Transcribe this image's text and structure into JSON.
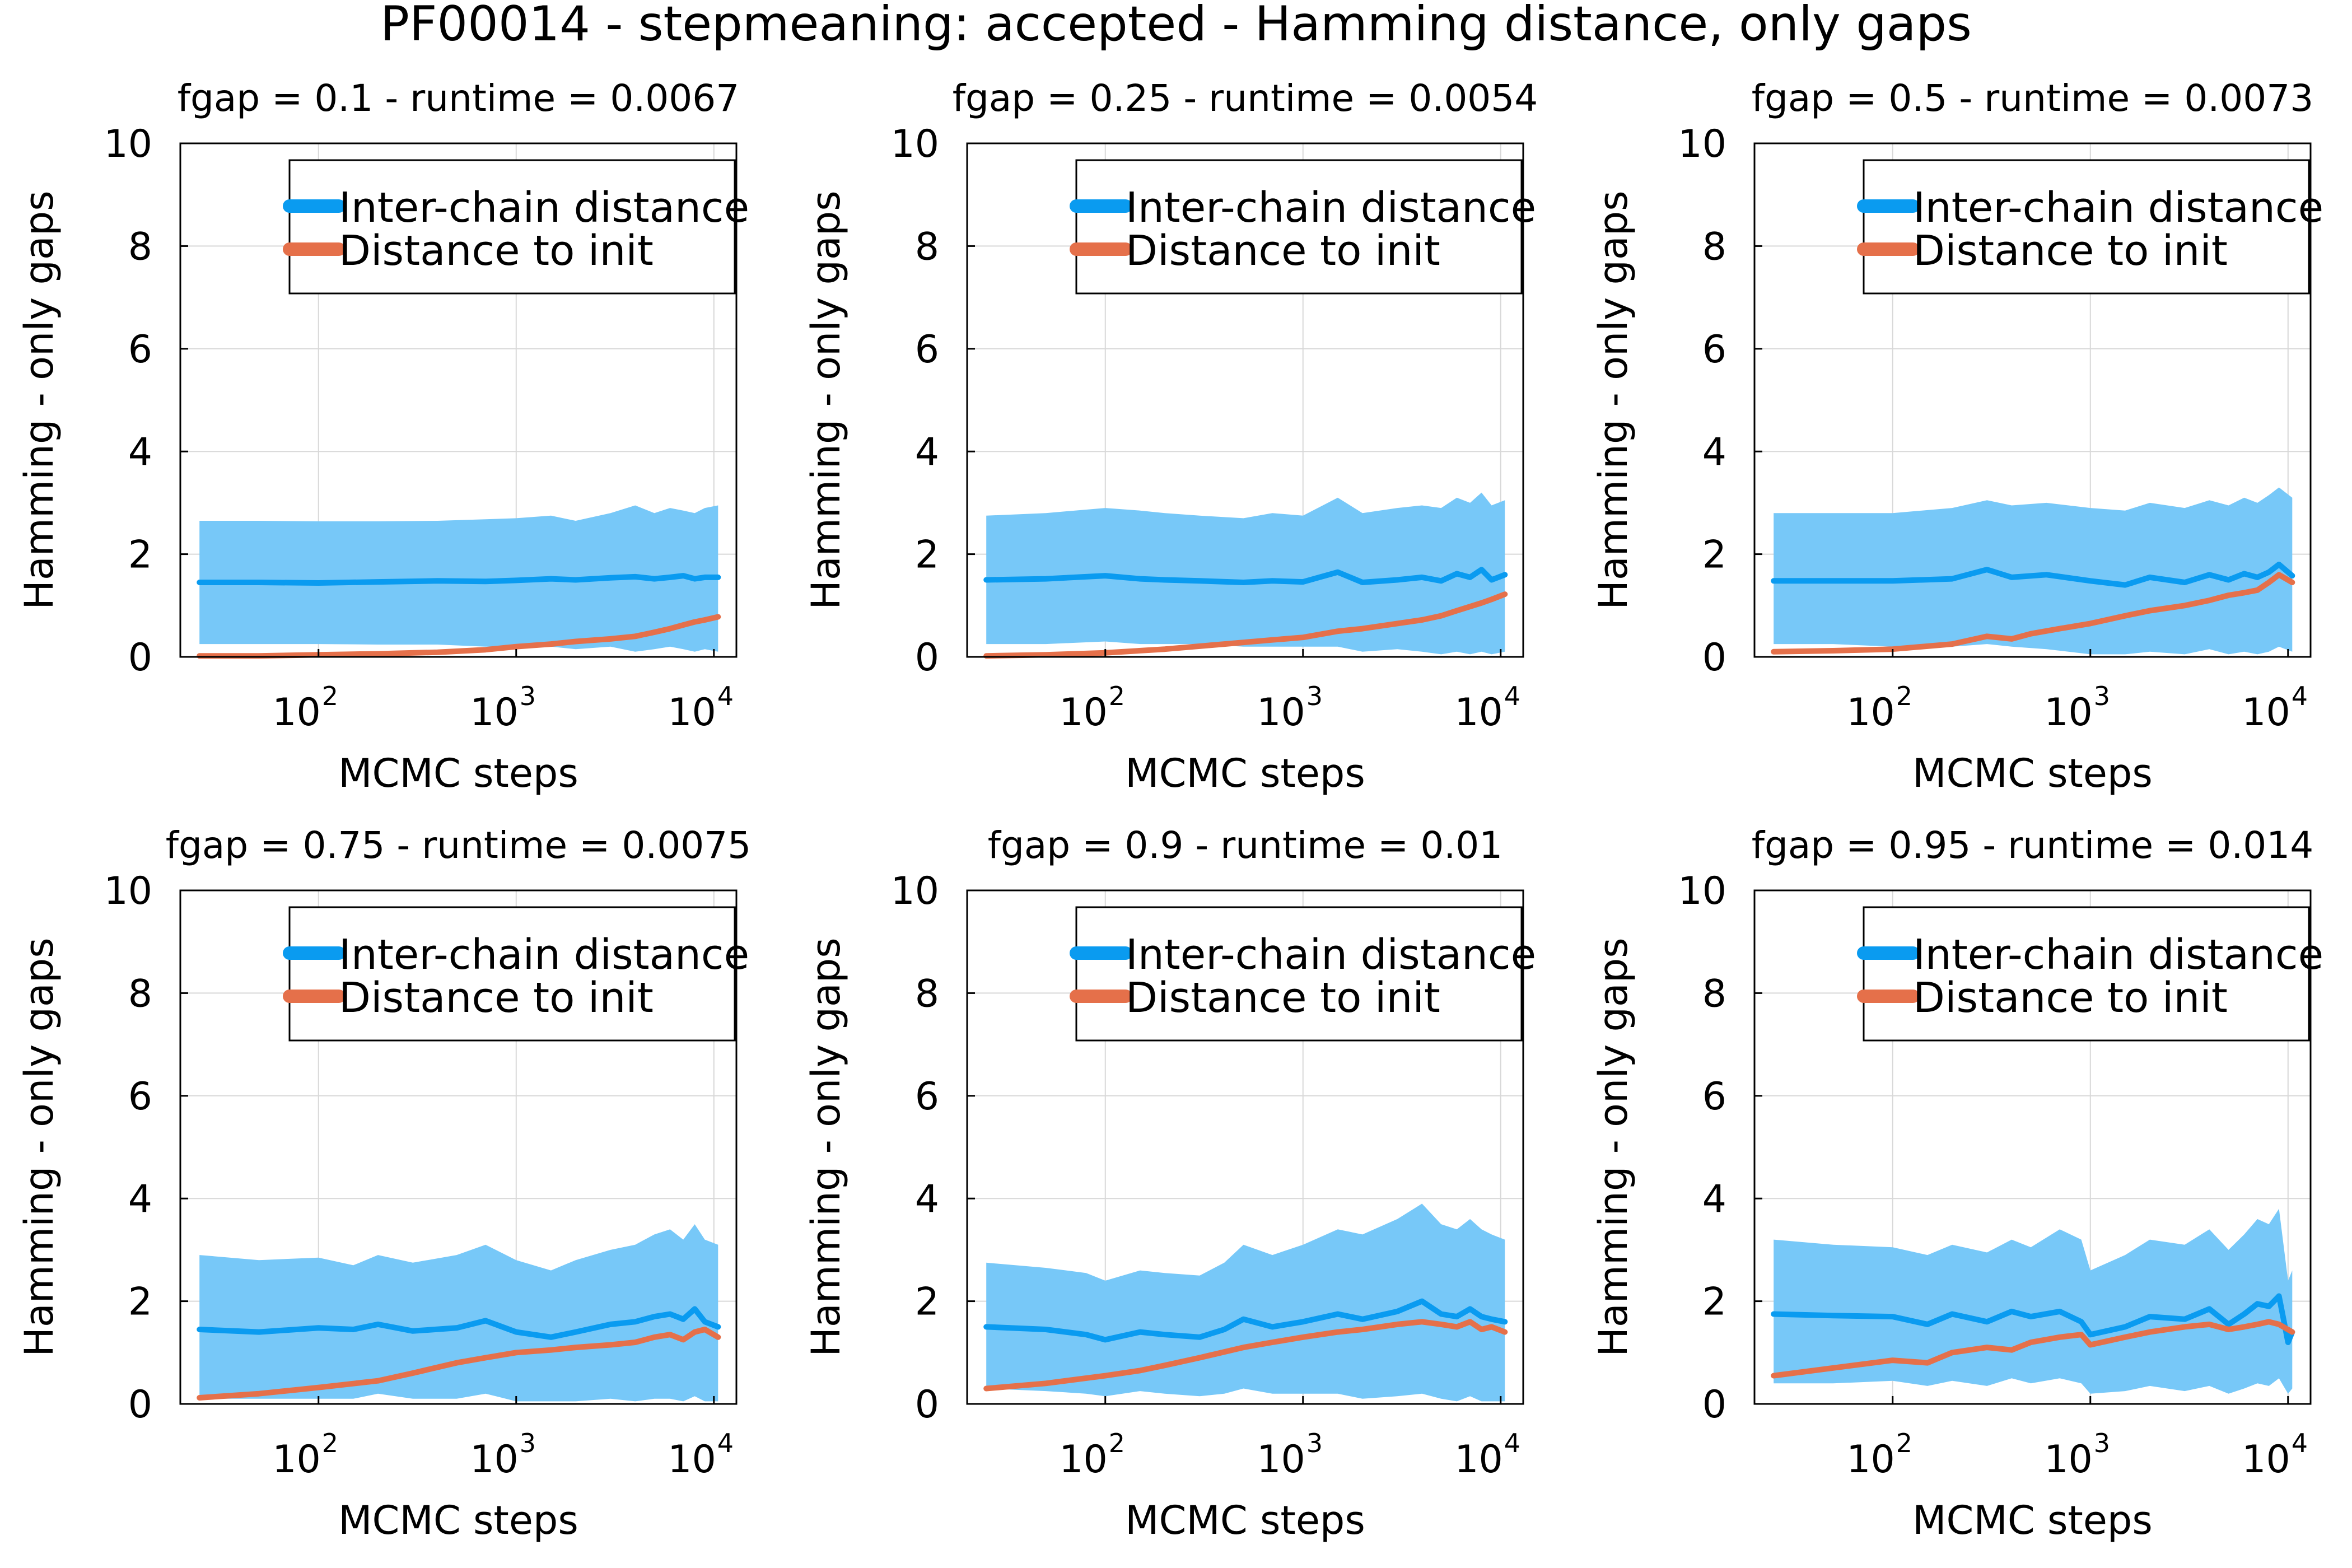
{
  "figure": {
    "title": "PF00014 - stepmeaning: accepted - Hamming distance, only gaps"
  },
  "colors": {
    "inter": "#0a9bf0",
    "band": "#77c8f8",
    "init": "#e5704a",
    "grid": "#d8d8d8",
    "frame": "#000000"
  },
  "legend": {
    "inter": "Inter-chain distance",
    "init": "Distance to init",
    "placement": "top-right"
  },
  "axis_labels": {
    "x": "MCMC steps",
    "y": "Hamming - only gaps"
  },
  "chart_data": [
    {
      "type": "line",
      "title": "fgap = 0.1 - runtime = 0.0067",
      "xlabel": "MCMC steps",
      "ylabel": "Hamming - only gaps",
      "xscale": "log",
      "xlim": [
        20,
        13000
      ],
      "ylim": [
        0,
        10
      ],
      "xticks": [
        {
          "base": "10",
          "exp": "2"
        },
        {
          "base": "10",
          "exp": "3"
        },
        {
          "base": "10",
          "exp": "4"
        }
      ],
      "yticks": [
        "0",
        "2",
        "4",
        "6",
        "8",
        "10"
      ],
      "grid": true,
      "series": [
        {
          "name": "Inter-chain distance",
          "x": [
            25,
            50,
            100,
            200,
            400,
            700,
            1000,
            1500,
            2000,
            3000,
            4000,
            5000,
            6000,
            7000,
            8000,
            9000,
            10500
          ],
          "y": [
            1.45,
            1.45,
            1.44,
            1.46,
            1.48,
            1.47,
            1.49,
            1.52,
            1.5,
            1.54,
            1.56,
            1.52,
            1.55,
            1.58,
            1.52,
            1.55,
            1.55
          ],
          "band_low": [
            0.25,
            0.25,
            0.25,
            0.24,
            0.24,
            0.2,
            0.2,
            0.2,
            0.15,
            0.2,
            0.1,
            0.15,
            0.2,
            0.15,
            0.1,
            0.15,
            0.1
          ],
          "band_high": [
            2.65,
            2.65,
            2.64,
            2.64,
            2.65,
            2.68,
            2.7,
            2.75,
            2.65,
            2.8,
            2.95,
            2.8,
            2.9,
            2.85,
            2.8,
            2.9,
            2.95
          ]
        },
        {
          "name": "Distance to init",
          "x": [
            25,
            50,
            100,
            200,
            400,
            700,
            1000,
            1500,
            2000,
            3000,
            4000,
            5000,
            6000,
            7000,
            8000,
            9000,
            10500
          ],
          "y": [
            0.02,
            0.02,
            0.04,
            0.06,
            0.09,
            0.14,
            0.2,
            0.25,
            0.3,
            0.35,
            0.4,
            0.48,
            0.55,
            0.62,
            0.68,
            0.72,
            0.78
          ]
        }
      ]
    },
    {
      "type": "line",
      "title": "fgap = 0.25 - runtime = 0.0054",
      "xlabel": "MCMC steps",
      "ylabel": "Hamming - only gaps",
      "xscale": "log",
      "xlim": [
        20,
        13000
      ],
      "ylim": [
        0,
        10
      ],
      "xticks": [
        {
          "base": "10",
          "exp": "2"
        },
        {
          "base": "10",
          "exp": "3"
        },
        {
          "base": "10",
          "exp": "4"
        }
      ],
      "yticks": [
        "0",
        "2",
        "4",
        "6",
        "8",
        "10"
      ],
      "grid": true,
      "series": [
        {
          "name": "Inter-chain distance",
          "x": [
            25,
            50,
            100,
            150,
            200,
            300,
            500,
            700,
            1000,
            1500,
            2000,
            3000,
            4000,
            5000,
            6000,
            7000,
            8000,
            9000,
            10500
          ],
          "y": [
            1.5,
            1.52,
            1.58,
            1.52,
            1.5,
            1.48,
            1.45,
            1.48,
            1.46,
            1.65,
            1.45,
            1.5,
            1.55,
            1.48,
            1.62,
            1.55,
            1.7,
            1.5,
            1.6
          ],
          "band_low": [
            0.25,
            0.25,
            0.3,
            0.25,
            0.25,
            0.25,
            0.2,
            0.2,
            0.2,
            0.2,
            0.1,
            0.15,
            0.1,
            0.05,
            0.1,
            0.05,
            0.1,
            0.05,
            0.1
          ],
          "band_high": [
            2.75,
            2.8,
            2.9,
            2.85,
            2.8,
            2.75,
            2.7,
            2.8,
            2.75,
            3.1,
            2.8,
            2.9,
            2.95,
            2.9,
            3.1,
            3.0,
            3.2,
            2.95,
            3.05
          ]
        },
        {
          "name": "Distance to init",
          "x": [
            25,
            50,
            100,
            200,
            400,
            700,
            1000,
            1500,
            2000,
            3000,
            4000,
            5000,
            6000,
            7000,
            8000,
            9000,
            10500
          ],
          "y": [
            0.02,
            0.04,
            0.08,
            0.15,
            0.25,
            0.33,
            0.38,
            0.5,
            0.55,
            0.65,
            0.72,
            0.8,
            0.9,
            0.98,
            1.05,
            1.12,
            1.22
          ]
        }
      ]
    },
    {
      "type": "line",
      "title": "fgap = 0.5 - runtime = 0.0073",
      "xlabel": "MCMC steps",
      "ylabel": "Hamming - only gaps",
      "xscale": "log",
      "xlim": [
        20,
        13000
      ],
      "ylim": [
        0,
        10
      ],
      "xticks": [
        {
          "base": "10",
          "exp": "2"
        },
        {
          "base": "10",
          "exp": "3"
        },
        {
          "base": "10",
          "exp": "4"
        }
      ],
      "yticks": [
        "0",
        "2",
        "4",
        "6",
        "8",
        "10"
      ],
      "grid": true,
      "series": [
        {
          "name": "Inter-chain distance",
          "x": [
            25,
            50,
            100,
            200,
            300,
            400,
            600,
            1000,
            1500,
            2000,
            3000,
            4000,
            5000,
            6000,
            7000,
            8000,
            9000,
            10500
          ],
          "y": [
            1.48,
            1.48,
            1.48,
            1.52,
            1.7,
            1.55,
            1.6,
            1.48,
            1.4,
            1.55,
            1.45,
            1.6,
            1.5,
            1.62,
            1.55,
            1.65,
            1.8,
            1.58
          ],
          "band_low": [
            0.25,
            0.25,
            0.2,
            0.2,
            0.25,
            0.2,
            0.15,
            0.05,
            0.05,
            0.1,
            0.05,
            0.15,
            0.05,
            0.1,
            0.05,
            0.1,
            0.2,
            0.1
          ],
          "band_high": [
            2.8,
            2.8,
            2.8,
            2.9,
            3.05,
            2.95,
            3.0,
            2.9,
            2.85,
            3.0,
            2.9,
            3.05,
            2.95,
            3.1,
            3.0,
            3.15,
            3.3,
            3.1
          ]
        },
        {
          "name": "Distance to init",
          "x": [
            25,
            50,
            100,
            200,
            300,
            400,
            500,
            700,
            1000,
            1500,
            2000,
            3000,
            4000,
            5000,
            6000,
            7000,
            8000,
            9000,
            10500
          ],
          "y": [
            0.1,
            0.12,
            0.15,
            0.25,
            0.4,
            0.35,
            0.45,
            0.55,
            0.65,
            0.8,
            0.9,
            1.0,
            1.1,
            1.2,
            1.25,
            1.3,
            1.45,
            1.6,
            1.45
          ]
        }
      ]
    },
    {
      "type": "line",
      "title": "fgap = 0.75 - runtime = 0.0075",
      "xlabel": "MCMC steps",
      "ylabel": "Hamming - only gaps",
      "xscale": "log",
      "xlim": [
        20,
        13000
      ],
      "ylim": [
        0,
        10
      ],
      "xticks": [
        {
          "base": "10",
          "exp": "2"
        },
        {
          "base": "10",
          "exp": "3"
        },
        {
          "base": "10",
          "exp": "4"
        }
      ],
      "yticks": [
        "0",
        "2",
        "4",
        "6",
        "8",
        "10"
      ],
      "grid": true,
      "series": [
        {
          "name": "Inter-chain distance",
          "x": [
            25,
            50,
            100,
            150,
            200,
            300,
            500,
            700,
            1000,
            1500,
            2000,
            3000,
            4000,
            5000,
            6000,
            7000,
            8000,
            9000,
            10500
          ],
          "y": [
            1.45,
            1.4,
            1.48,
            1.45,
            1.55,
            1.42,
            1.48,
            1.62,
            1.4,
            1.3,
            1.4,
            1.55,
            1.6,
            1.7,
            1.75,
            1.65,
            1.85,
            1.6,
            1.5
          ],
          "band_low": [
            0.1,
            0.1,
            0.1,
            0.1,
            0.2,
            0.1,
            0.1,
            0.2,
            0.05,
            0.05,
            0.05,
            0.1,
            0.05,
            0.1,
            0.1,
            0.05,
            0.15,
            0.05,
            0.05
          ],
          "band_high": [
            2.9,
            2.8,
            2.85,
            2.7,
            2.9,
            2.75,
            2.9,
            3.1,
            2.8,
            2.6,
            2.8,
            3.0,
            3.1,
            3.3,
            3.4,
            3.2,
            3.5,
            3.2,
            3.1
          ]
        },
        {
          "name": "Distance to init",
          "x": [
            25,
            50,
            100,
            200,
            300,
            500,
            700,
            1000,
            1500,
            2000,
            3000,
            4000,
            5000,
            6000,
            7000,
            8000,
            9000,
            10500
          ],
          "y": [
            0.12,
            0.2,
            0.32,
            0.45,
            0.6,
            0.8,
            0.9,
            1.0,
            1.05,
            1.1,
            1.15,
            1.2,
            1.3,
            1.35,
            1.25,
            1.4,
            1.45,
            1.3
          ]
        }
      ]
    },
    {
      "type": "line",
      "title": "fgap = 0.9 - runtime = 0.01",
      "xlabel": "MCMC steps",
      "ylabel": "Hamming - only gaps",
      "xscale": "log",
      "xlim": [
        20,
        13000
      ],
      "ylim": [
        0,
        10
      ],
      "xticks": [
        {
          "base": "10",
          "exp": "2"
        },
        {
          "base": "10",
          "exp": "3"
        },
        {
          "base": "10",
          "exp": "4"
        }
      ],
      "yticks": [
        "0",
        "2",
        "4",
        "6",
        "8",
        "10"
      ],
      "grid": true,
      "series": [
        {
          "name": "Inter-chain distance",
          "x": [
            25,
            50,
            80,
            100,
            150,
            200,
            300,
            400,
            500,
            700,
            1000,
            1500,
            2000,
            3000,
            4000,
            5000,
            6000,
            7000,
            8000,
            9000,
            10500
          ],
          "y": [
            1.5,
            1.45,
            1.35,
            1.25,
            1.4,
            1.35,
            1.3,
            1.45,
            1.65,
            1.5,
            1.6,
            1.75,
            1.65,
            1.8,
            2.0,
            1.75,
            1.7,
            1.85,
            1.7,
            1.65,
            1.6
          ],
          "band_low": [
            0.3,
            0.25,
            0.2,
            0.15,
            0.25,
            0.2,
            0.15,
            0.2,
            0.3,
            0.2,
            0.2,
            0.2,
            0.1,
            0.15,
            0.2,
            0.1,
            0.05,
            0.15,
            0.05,
            0.05,
            0.05
          ],
          "band_high": [
            2.75,
            2.65,
            2.55,
            2.4,
            2.6,
            2.55,
            2.5,
            2.75,
            3.1,
            2.9,
            3.1,
            3.4,
            3.3,
            3.6,
            3.9,
            3.5,
            3.4,
            3.6,
            3.4,
            3.3,
            3.2
          ]
        },
        {
          "name": "Distance to init",
          "x": [
            25,
            50,
            100,
            150,
            200,
            300,
            500,
            700,
            1000,
            1500,
            2000,
            3000,
            4000,
            5000,
            6000,
            7000,
            8000,
            9000,
            10500
          ],
          "y": [
            0.3,
            0.4,
            0.55,
            0.65,
            0.75,
            0.9,
            1.1,
            1.2,
            1.3,
            1.4,
            1.45,
            1.55,
            1.6,
            1.55,
            1.5,
            1.6,
            1.45,
            1.5,
            1.4
          ]
        }
      ]
    },
    {
      "type": "line",
      "title": "fgap = 0.95 - runtime = 0.014",
      "xlabel": "MCMC steps",
      "ylabel": "Hamming - only gaps",
      "xscale": "log",
      "xlim": [
        20,
        13000
      ],
      "ylim": [
        0,
        10
      ],
      "xticks": [
        {
          "base": "10",
          "exp": "2"
        },
        {
          "base": "10",
          "exp": "3"
        },
        {
          "base": "10",
          "exp": "4"
        }
      ],
      "yticks": [
        "0",
        "2",
        "4",
        "6",
        "8",
        "10"
      ],
      "grid": true,
      "series": [
        {
          "name": "Inter-chain distance",
          "x": [
            25,
            50,
            100,
            150,
            200,
            300,
            400,
            500,
            700,
            900,
            1000,
            1500,
            2000,
            3000,
            4000,
            5000,
            6000,
            7000,
            8000,
            9000,
            10000,
            10500
          ],
          "y": [
            1.75,
            1.72,
            1.7,
            1.55,
            1.75,
            1.6,
            1.8,
            1.7,
            1.8,
            1.6,
            1.35,
            1.5,
            1.7,
            1.65,
            1.85,
            1.55,
            1.75,
            1.95,
            1.9,
            2.1,
            1.2,
            1.4
          ],
          "band_low": [
            0.4,
            0.4,
            0.45,
            0.35,
            0.45,
            0.35,
            0.5,
            0.4,
            0.5,
            0.4,
            0.2,
            0.25,
            0.35,
            0.25,
            0.35,
            0.2,
            0.3,
            0.4,
            0.35,
            0.5,
            0.2,
            0.3
          ],
          "band_high": [
            3.2,
            3.1,
            3.05,
            2.9,
            3.1,
            2.95,
            3.2,
            3.05,
            3.4,
            3.2,
            2.6,
            2.9,
            3.2,
            3.1,
            3.4,
            3.0,
            3.3,
            3.6,
            3.5,
            3.8,
            2.4,
            2.6
          ]
        },
        {
          "name": "Distance to init",
          "x": [
            25,
            50,
            100,
            150,
            200,
            300,
            400,
            500,
            700,
            900,
            1000,
            1500,
            2000,
            3000,
            4000,
            5000,
            6000,
            7000,
            8000,
            9000,
            10500
          ],
          "y": [
            0.55,
            0.7,
            0.85,
            0.8,
            1.0,
            1.1,
            1.05,
            1.2,
            1.3,
            1.35,
            1.15,
            1.3,
            1.4,
            1.5,
            1.55,
            1.45,
            1.5,
            1.55,
            1.6,
            1.55,
            1.4
          ]
        }
      ]
    }
  ]
}
